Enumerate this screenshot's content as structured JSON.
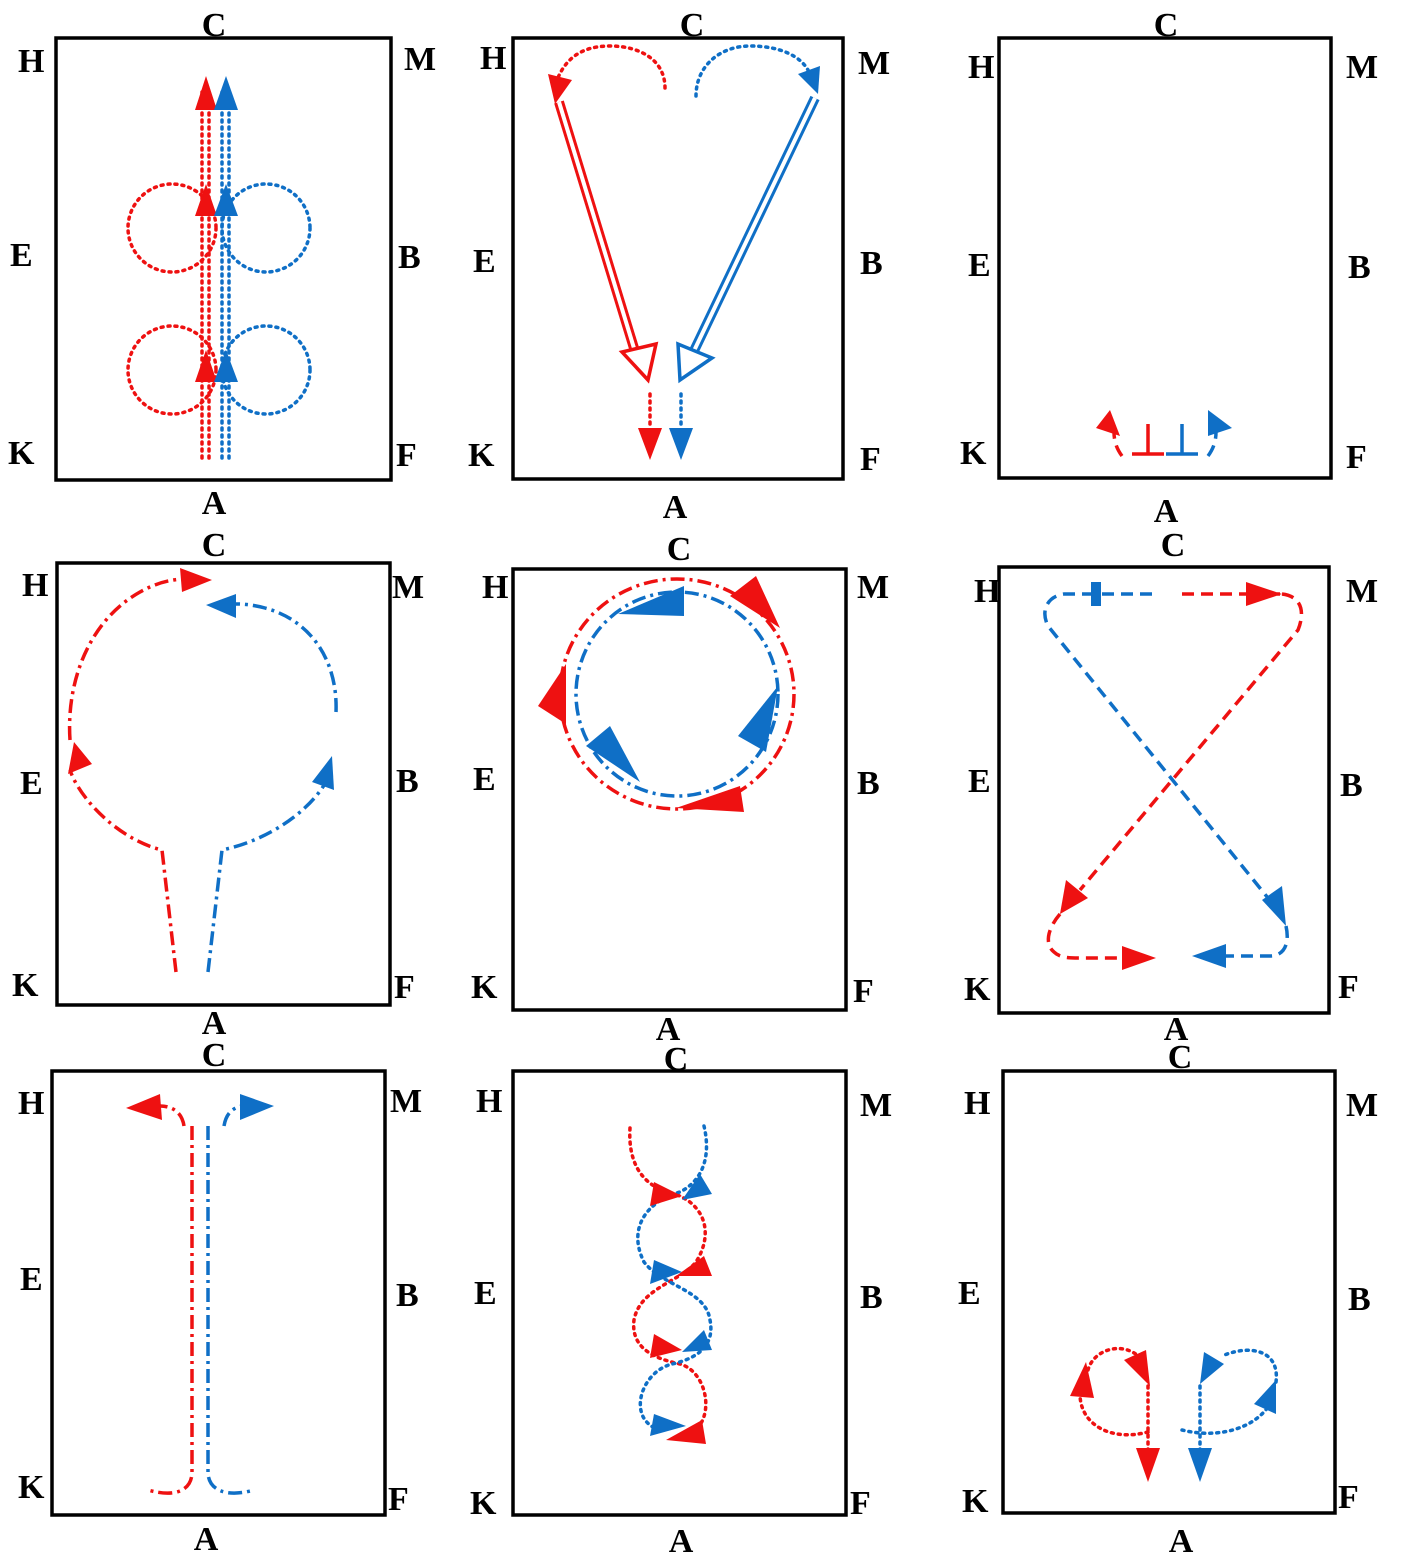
{
  "labels": {
    "top": "C",
    "bottom": "A",
    "top_left": "H",
    "top_right": "M",
    "mid_left": "E",
    "mid_right": "B",
    "bottom_left": "K",
    "bottom_right": "F"
  },
  "colors": {
    "red": "#ee1111",
    "blue": "#0f6fc6",
    "frame": "#000000"
  },
  "panels": [
    {
      "figure": "parallel-upward-with-side-loops"
    },
    {
      "figure": "heart-shaped-crossing"
    },
    {
      "figure": "short-split-at-bottom"
    },
    {
      "figure": "circle-split-from-bottom"
    },
    {
      "figure": "double-circle"
    },
    {
      "figure": "figure-eight-crossing"
    },
    {
      "figure": "straight-line-with-hooks"
    },
    {
      "figure": "serpentine-weave"
    },
    {
      "figure": "small-loops-then-down"
    }
  ]
}
